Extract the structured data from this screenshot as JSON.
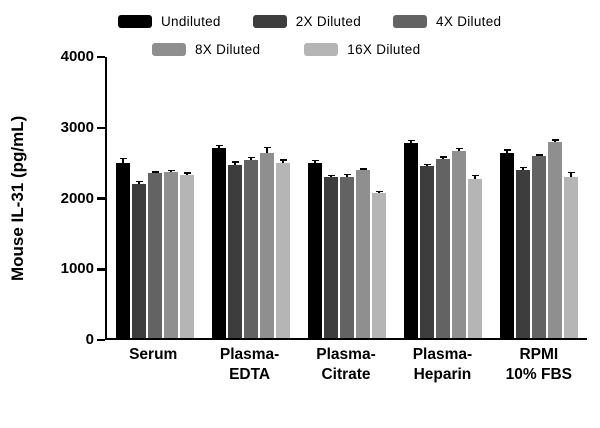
{
  "chart_data": {
    "type": "bar",
    "title": "",
    "xlabel": "",
    "ylabel": "Mouse IL-31 (pg/mL)",
    "ylim": [
      0,
      4000
    ],
    "yticks": [
      0,
      1000,
      2000,
      3000,
      4000
    ],
    "grid": false,
    "legend_position": "top",
    "categories": [
      {
        "name": "Serum",
        "line1": "Serum",
        "line2": ""
      },
      {
        "name": "Plasma-EDTA",
        "line1": "Plasma-",
        "line2": "EDTA"
      },
      {
        "name": "Plasma-Citrate",
        "line1": "Plasma-",
        "line2": "Citrate"
      },
      {
        "name": "Plasma-Heparin",
        "line1": "Plasma-",
        "line2": "Heparin"
      },
      {
        "name": "RPMI 10% FBS",
        "line1": "RPMI",
        "line2": "10% FBS"
      }
    ],
    "series": [
      {
        "name": "Undiluted",
        "color": "#000000",
        "values": [
          2480,
          2680,
          2480,
          2760,
          2620
        ],
        "errors": [
          70,
          50,
          40,
          40,
          50
        ]
      },
      {
        "name": "2X Diluted",
        "color": "#3d3d3d",
        "values": [
          2180,
          2450,
          2270,
          2430,
          2380
        ],
        "errors": [
          40,
          50,
          40,
          30,
          40
        ]
      },
      {
        "name": "4X Diluted",
        "color": "#636363",
        "values": [
          2330,
          2520,
          2280,
          2530,
          2570
        ],
        "errors": [
          30,
          40,
          40,
          40,
          30
        ]
      },
      {
        "name": "8X Diluted",
        "color": "#8f8f8f",
        "values": [
          2340,
          2610,
          2370,
          2650,
          2770
        ],
        "errors": [
          40,
          90,
          30,
          40,
          40
        ]
      },
      {
        "name": "16X Diluted",
        "color": "#b5b5b5",
        "values": [
          2300,
          2470,
          2050,
          2250,
          2270
        ],
        "errors": [
          40,
          60,
          30,
          60,
          80
        ]
      }
    ],
    "legend_rows": [
      3,
      2
    ]
  },
  "colors": {
    "axis": "#000000",
    "background": "#ffffff"
  }
}
